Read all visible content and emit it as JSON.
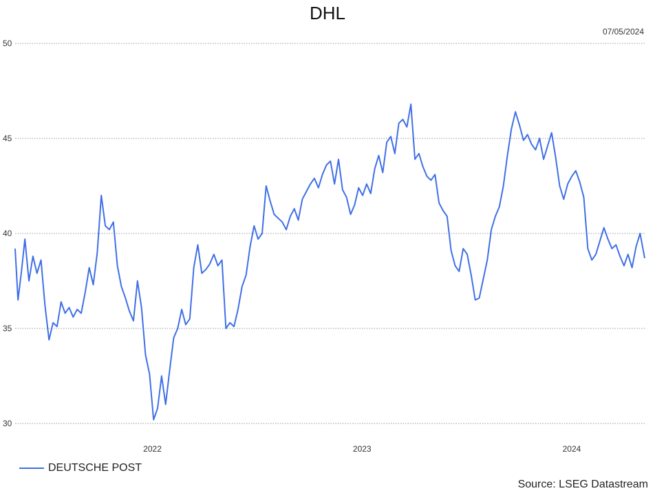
{
  "chart_data": {
    "type": "line",
    "title": "DHL",
    "date": "07/05/2024",
    "source": "Source: LSEG Datastream",
    "ylim": [
      30,
      50
    ],
    "yticks": [
      30,
      35,
      40,
      45,
      50
    ],
    "xticks": [
      {
        "label": "2022",
        "date": "2022-01-01"
      },
      {
        "label": "2023",
        "date": "2023-01-01"
      },
      {
        "label": "2024",
        "date": "2024-01-01"
      }
    ],
    "x_range": [
      "2021-05-07",
      "2024-05-07"
    ],
    "grid": true,
    "legend_position": "bottom-left",
    "line_color": "#3f6fe6",
    "series": [
      {
        "name": "DEUTSCHE POST",
        "points": [
          [
            "2021-05-07",
            39.2
          ],
          [
            "2021-05-12",
            36.5
          ],
          [
            "2021-05-18",
            38.0
          ],
          [
            "2021-05-24",
            39.7
          ],
          [
            "2021-05-31",
            37.5
          ],
          [
            "2021-06-07",
            38.8
          ],
          [
            "2021-06-14",
            37.9
          ],
          [
            "2021-06-21",
            38.6
          ],
          [
            "2021-06-28",
            36.2
          ],
          [
            "2021-07-05",
            34.4
          ],
          [
            "2021-07-12",
            35.3
          ],
          [
            "2021-07-19",
            35.1
          ],
          [
            "2021-07-26",
            36.4
          ],
          [
            "2021-08-02",
            35.8
          ],
          [
            "2021-08-09",
            36.1
          ],
          [
            "2021-08-16",
            35.6
          ],
          [
            "2021-08-23",
            36.0
          ],
          [
            "2021-08-30",
            35.8
          ],
          [
            "2021-09-06",
            36.9
          ],
          [
            "2021-09-13",
            38.2
          ],
          [
            "2021-09-20",
            37.3
          ],
          [
            "2021-09-27",
            39.0
          ],
          [
            "2021-10-04",
            42.0
          ],
          [
            "2021-10-11",
            40.4
          ],
          [
            "2021-10-18",
            40.2
          ],
          [
            "2021-10-25",
            40.6
          ],
          [
            "2021-11-01",
            38.3
          ],
          [
            "2021-11-08",
            37.2
          ],
          [
            "2021-11-15",
            36.6
          ],
          [
            "2021-11-22",
            35.9
          ],
          [
            "2021-11-29",
            35.4
          ],
          [
            "2021-12-06",
            37.5
          ],
          [
            "2021-12-13",
            36.1
          ],
          [
            "2021-12-20",
            33.6
          ],
          [
            "2021-12-27",
            32.6
          ],
          [
            "2022-01-03",
            30.2
          ],
          [
            "2022-01-10",
            30.8
          ],
          [
            "2022-01-17",
            32.5
          ],
          [
            "2022-01-24",
            31.0
          ],
          [
            "2022-01-31",
            32.8
          ],
          [
            "2022-02-07",
            34.5
          ],
          [
            "2022-02-14",
            35.0
          ],
          [
            "2022-02-21",
            36.0
          ],
          [
            "2022-02-28",
            35.2
          ],
          [
            "2022-03-07",
            35.5
          ],
          [
            "2022-03-14",
            38.2
          ],
          [
            "2022-03-21",
            39.4
          ],
          [
            "2022-03-28",
            37.9
          ],
          [
            "2022-04-04",
            38.1
          ],
          [
            "2022-04-11",
            38.4
          ],
          [
            "2022-04-18",
            38.9
          ],
          [
            "2022-04-25",
            38.3
          ],
          [
            "2022-05-02",
            38.6
          ],
          [
            "2022-05-09",
            35.0
          ],
          [
            "2022-05-16",
            35.3
          ],
          [
            "2022-05-23",
            35.1
          ],
          [
            "2022-05-30",
            36.0
          ],
          [
            "2022-06-06",
            37.2
          ],
          [
            "2022-06-13",
            37.8
          ],
          [
            "2022-06-20",
            39.3
          ],
          [
            "2022-06-27",
            40.4
          ],
          [
            "2022-07-04",
            39.7
          ],
          [
            "2022-07-11",
            40.0
          ],
          [
            "2022-07-18",
            42.5
          ],
          [
            "2022-07-25",
            41.7
          ],
          [
            "2022-08-01",
            41.0
          ],
          [
            "2022-08-08",
            40.8
          ],
          [
            "2022-08-15",
            40.6
          ],
          [
            "2022-08-22",
            40.2
          ],
          [
            "2022-08-29",
            40.9
          ],
          [
            "2022-09-05",
            41.3
          ],
          [
            "2022-09-12",
            40.7
          ],
          [
            "2022-09-19",
            41.8
          ],
          [
            "2022-09-26",
            42.2
          ],
          [
            "2022-10-03",
            42.6
          ],
          [
            "2022-10-10",
            42.9
          ],
          [
            "2022-10-17",
            42.4
          ],
          [
            "2022-10-24",
            43.1
          ],
          [
            "2022-10-31",
            43.6
          ],
          [
            "2022-11-07",
            43.8
          ],
          [
            "2022-11-14",
            42.6
          ],
          [
            "2022-11-21",
            43.9
          ],
          [
            "2022-11-28",
            42.3
          ],
          [
            "2022-12-05",
            41.9
          ],
          [
            "2022-12-12",
            41.0
          ],
          [
            "2022-12-19",
            41.5
          ],
          [
            "2022-12-26",
            42.4
          ],
          [
            "2023-01-02",
            42.0
          ],
          [
            "2023-01-09",
            42.6
          ],
          [
            "2023-01-16",
            42.1
          ],
          [
            "2023-01-23",
            43.4
          ],
          [
            "2023-01-30",
            44.1
          ],
          [
            "2023-02-06",
            43.2
          ],
          [
            "2023-02-13",
            44.8
          ],
          [
            "2023-02-20",
            45.1
          ],
          [
            "2023-02-27",
            44.2
          ],
          [
            "2023-03-06",
            45.8
          ],
          [
            "2023-03-13",
            46.0
          ],
          [
            "2023-03-20",
            45.6
          ],
          [
            "2023-03-27",
            46.8
          ],
          [
            "2023-04-03",
            43.9
          ],
          [
            "2023-04-10",
            44.2
          ],
          [
            "2023-04-17",
            43.5
          ],
          [
            "2023-04-24",
            43.0
          ],
          [
            "2023-05-01",
            42.8
          ],
          [
            "2023-05-08",
            43.1
          ],
          [
            "2023-05-15",
            41.6
          ],
          [
            "2023-05-22",
            41.2
          ],
          [
            "2023-05-29",
            40.9
          ],
          [
            "2023-06-05",
            39.1
          ],
          [
            "2023-06-12",
            38.3
          ],
          [
            "2023-06-19",
            38.0
          ],
          [
            "2023-06-26",
            39.2
          ],
          [
            "2023-07-03",
            38.9
          ],
          [
            "2023-07-10",
            37.8
          ],
          [
            "2023-07-17",
            36.5
          ],
          [
            "2023-07-24",
            36.6
          ],
          [
            "2023-07-31",
            37.6
          ],
          [
            "2023-08-07",
            38.6
          ],
          [
            "2023-08-14",
            40.2
          ],
          [
            "2023-08-21",
            40.9
          ],
          [
            "2023-08-28",
            41.4
          ],
          [
            "2023-09-04",
            42.5
          ],
          [
            "2023-09-11",
            44.1
          ],
          [
            "2023-09-18",
            45.5
          ],
          [
            "2023-09-25",
            46.4
          ],
          [
            "2023-10-02",
            45.7
          ],
          [
            "2023-10-09",
            44.9
          ],
          [
            "2023-10-16",
            45.2
          ],
          [
            "2023-10-23",
            44.7
          ],
          [
            "2023-10-30",
            44.4
          ],
          [
            "2023-11-06",
            45.0
          ],
          [
            "2023-11-13",
            43.9
          ],
          [
            "2023-11-20",
            44.6
          ],
          [
            "2023-11-27",
            45.3
          ],
          [
            "2023-12-04",
            44.0
          ],
          [
            "2023-12-11",
            42.5
          ],
          [
            "2023-12-18",
            41.8
          ],
          [
            "2023-12-25",
            42.6
          ],
          [
            "2024-01-01",
            43.0
          ],
          [
            "2024-01-08",
            43.3
          ],
          [
            "2024-01-15",
            42.7
          ],
          [
            "2024-01-22",
            41.9
          ],
          [
            "2024-01-29",
            39.2
          ],
          [
            "2024-02-05",
            38.6
          ],
          [
            "2024-02-12",
            38.9
          ],
          [
            "2024-02-19",
            39.6
          ],
          [
            "2024-02-26",
            40.3
          ],
          [
            "2024-03-04",
            39.7
          ],
          [
            "2024-03-11",
            39.2
          ],
          [
            "2024-03-18",
            39.4
          ],
          [
            "2024-03-25",
            38.8
          ],
          [
            "2024-04-01",
            38.3
          ],
          [
            "2024-04-08",
            38.9
          ],
          [
            "2024-04-15",
            38.2
          ],
          [
            "2024-04-22",
            39.3
          ],
          [
            "2024-04-29",
            40.0
          ],
          [
            "2024-05-07",
            38.7
          ]
        ]
      }
    ]
  }
}
